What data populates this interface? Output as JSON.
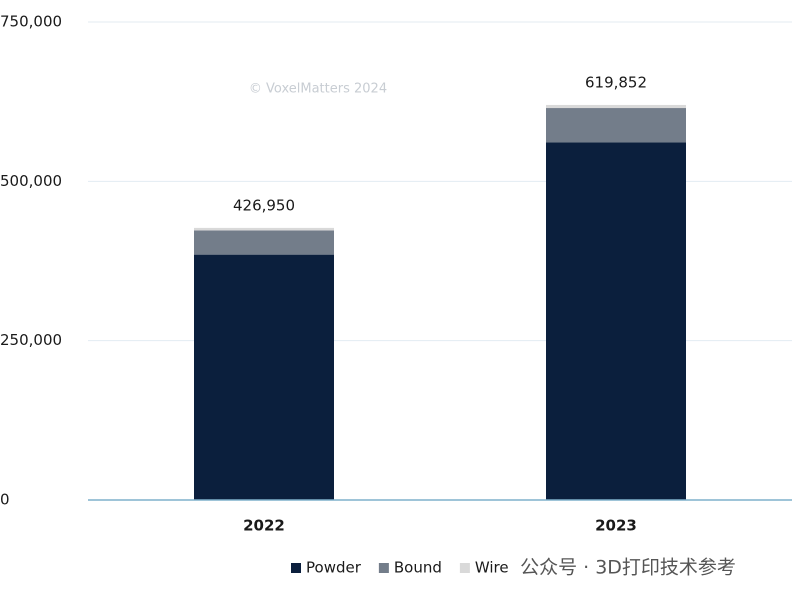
{
  "chart_data": {
    "type": "stacked-bar",
    "watermark": "© VoxelMatters 2024",
    "overlay": "公众号 · 3D打印技术参考",
    "categories": [
      "2022",
      "2023"
    ],
    "series": [
      {
        "name": "Powder",
        "color": "#0b1f3d",
        "values": [
          385000,
          561000
        ]
      },
      {
        "name": "Bound",
        "color": "#737d8a",
        "values": [
          38000,
          54000
        ]
      },
      {
        "name": "Wire",
        "color": "#d9d9d9",
        "values": [
          3950,
          4852
        ]
      }
    ],
    "totals": {
      "values": [
        426950,
        619852
      ],
      "value_labels": [
        "426,950",
        "619,852"
      ]
    },
    "ylim": [
      0,
      750000
    ],
    "yticks": [
      0,
      {
        "value": 250000,
        "label": "250,000"
      },
      {
        "value": 500000,
        "label": "500,000"
      },
      {
        "value": 750000,
        "label": "750,000"
      }
    ],
    "grid": true
  }
}
